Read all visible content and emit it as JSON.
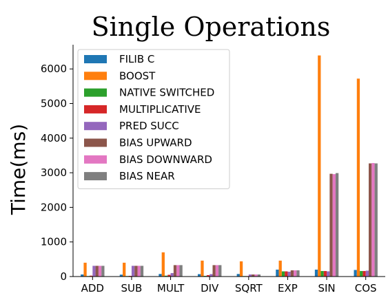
{
  "chart_data": {
    "type": "bar",
    "title": "Single Operations",
    "xlabel": "",
    "ylabel": "Time(ms)",
    "ylim": [
      0,
      6700
    ],
    "yticks": [
      0,
      1000,
      2000,
      3000,
      4000,
      5000,
      6000
    ],
    "grid": false,
    "legend_position": "top-left",
    "categories": [
      "ADD",
      "SUB",
      "MULT",
      "DIV",
      "SQRT",
      "EXP",
      "SIN",
      "COS"
    ],
    "series": [
      {
        "name": "FILIB C",
        "color": "#1f77b4",
        "values": [
          60,
          55,
          75,
          70,
          75,
          200,
          200,
          190
        ]
      },
      {
        "name": "BOOST",
        "color": "#ff7f0e",
        "values": [
          400,
          400,
          700,
          460,
          440,
          460,
          6390,
          5720
        ]
      },
      {
        "name": "NATIVE SWITCHED",
        "color": "#2ca02c",
        "values": [
          15,
          15,
          25,
          20,
          15,
          150,
          160,
          160
        ]
      },
      {
        "name": "MULTIPLICATIVE",
        "color": "#d62728",
        "values": [
          25,
          20,
          50,
          40,
          15,
          150,
          160,
          160
        ]
      },
      {
        "name": "PRED SUCC",
        "color": "#9467bd",
        "values": [
          310,
          310,
          100,
          70,
          60,
          140,
          150,
          170
        ]
      },
      {
        "name": "BIAS UPWARD",
        "color": "#8c564b",
        "values": [
          310,
          310,
          330,
          330,
          60,
          180,
          2970,
          3270
        ]
      },
      {
        "name": "BIAS DOWNWARD",
        "color": "#e377c2",
        "values": [
          310,
          310,
          330,
          330,
          60,
          180,
          2960,
          3280
        ]
      },
      {
        "name": "BIAS NEAR",
        "color": "#7f7f7f",
        "values": [
          310,
          310,
          330,
          330,
          60,
          180,
          2990,
          3270
        ]
      }
    ]
  }
}
